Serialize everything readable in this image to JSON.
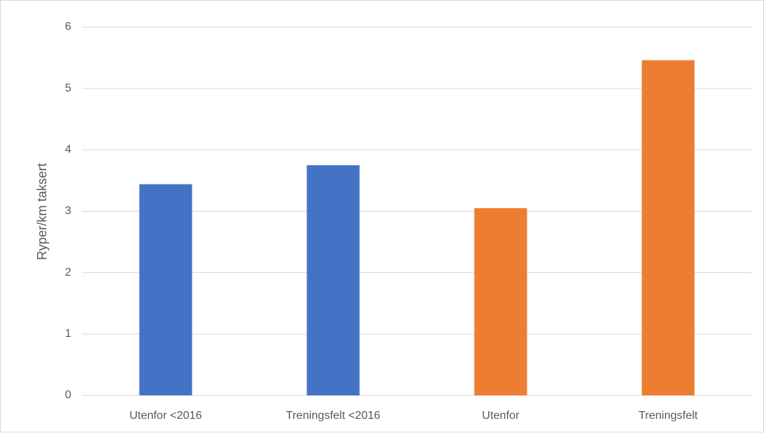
{
  "chart_data": {
    "type": "bar",
    "categories": [
      "Utenfor <2016",
      "Treningsfelt <2016",
      "Utenfor",
      "Treningsfelt"
    ],
    "values": [
      3.44,
      3.75,
      3.05,
      5.46
    ],
    "colors": [
      "#4472c4",
      "#4472c4",
      "#ed7d31",
      "#ed7d31"
    ],
    "ylabel": "Ryper/km taksert",
    "ylim": [
      0,
      6
    ],
    "yticks": [
      0,
      1,
      2,
      3,
      4,
      5,
      6
    ],
    "grid": true
  }
}
